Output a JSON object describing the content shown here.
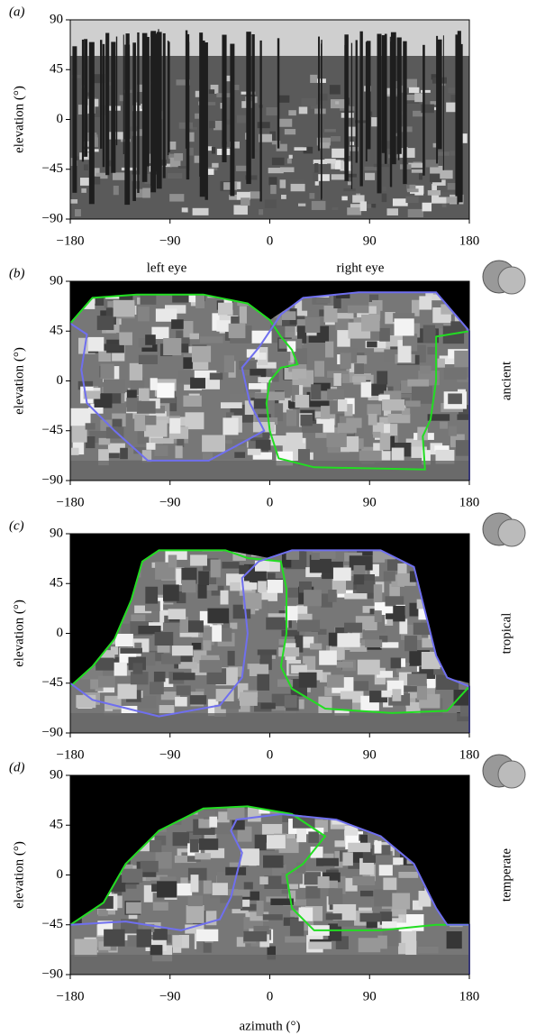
{
  "chart_data": [
    {
      "type": "image",
      "panel_label": "(a)",
      "y_label": "elevation (°)",
      "xlim": [
        -180,
        180
      ],
      "ylim": [
        -90,
        90
      ],
      "xticks": [
        {
          "value": -180,
          "label": "−180"
        },
        {
          "value": -90,
          "label": "−90"
        },
        0,
        90,
        180
      ],
      "yticks": [
        90,
        45,
        0,
        {
          "value": -45,
          "label": "−45"
        },
        {
          "value": -90,
          "label": "−90"
        }
      ]
    },
    {
      "type": "image",
      "panel_label": "(b)",
      "y_label": "elevation (°)",
      "xlim": [
        -180,
        180
      ],
      "ylim": [
        -90,
        90
      ],
      "xticks": [
        {
          "value": -180,
          "label": "−180"
        },
        {
          "value": -90,
          "label": "−90"
        },
        0,
        90,
        180
      ],
      "yticks": [
        90,
        45,
        0,
        {
          "value": -45,
          "label": "−45"
        },
        {
          "value": -90,
          "label": "−90"
        }
      ],
      "series": [
        {
          "name": "left eye",
          "color": "#22dd22"
        },
        {
          "name": "right eye",
          "color": "#6f6fef"
        }
      ],
      "side_label": "ancient",
      "side_color": "#ee1111"
    },
    {
      "type": "image",
      "panel_label": "(c)",
      "y_label": "elevation (°)",
      "xlim": [
        -180,
        180
      ],
      "ylim": [
        -90,
        90
      ],
      "xticks": [
        {
          "value": -180,
          "label": "−180"
        },
        {
          "value": -90,
          "label": "−90"
        },
        0,
        90,
        180
      ],
      "yticks": [
        90,
        45,
        0,
        {
          "value": -45,
          "label": "−45"
        },
        {
          "value": -90,
          "label": "−90"
        }
      ],
      "side_label": "tropical",
      "side_color": "#22dd22"
    },
    {
      "type": "image",
      "panel_label": "(d)",
      "y_label": "elevation (°)",
      "x_label": "azimuth (°)",
      "xlim": [
        -180,
        180
      ],
      "ylim": [
        -90,
        90
      ],
      "xticks": [
        {
          "value": -180,
          "label": "−180"
        },
        {
          "value": -90,
          "label": "−90"
        },
        0,
        90,
        180
      ],
      "yticks": [
        90,
        45,
        0,
        {
          "value": -45,
          "label": "−45"
        },
        {
          "value": -90,
          "label": "−90"
        }
      ],
      "side_label": "temperate",
      "side_color": "#2222ee"
    }
  ]
}
